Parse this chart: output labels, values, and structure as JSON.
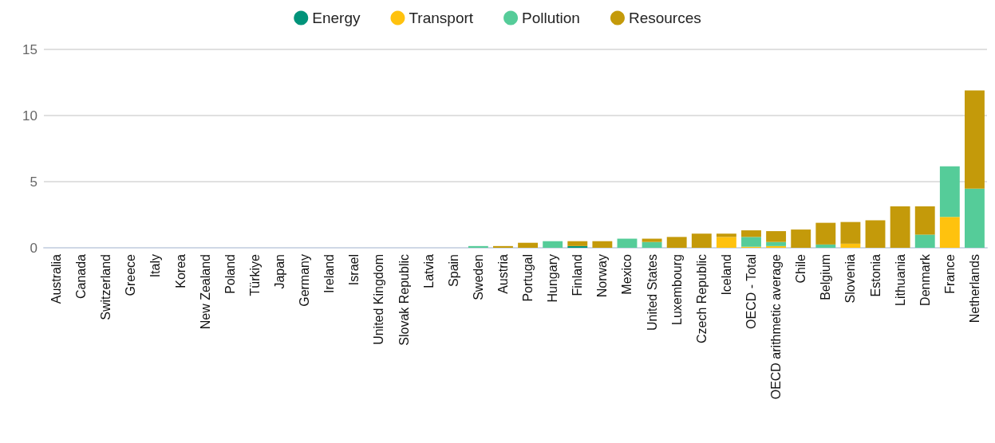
{
  "chart_data": {
    "type": "bar",
    "stacked": true,
    "legend": "top",
    "grid": "y",
    "ylim": [
      0,
      15
    ],
    "yticks": [
      0,
      5,
      10,
      15
    ],
    "categories": [
      "Australia",
      "Canada",
      "Switzerland",
      "Greece",
      "Italy",
      "Korea",
      "New Zealand",
      "Poland",
      "Türkiye",
      "Japan",
      "Germany",
      "Ireland",
      "Israel",
      "United Kingdom",
      "Slovak Republic",
      "Latvia",
      "Spain",
      "Sweden",
      "Austria",
      "Portugal",
      "Hungary",
      "Finland",
      "Norway",
      "Mexico",
      "United States",
      "Luxembourg",
      "Czech Republic",
      "Iceland",
      "OECD - Total",
      "OECD arithmetic average",
      "Chile",
      "Belgium",
      "Slovenia",
      "Estonia",
      "Lithuania",
      "Denmark",
      "France",
      "Netherlands"
    ],
    "series": [
      {
        "name": "Energy",
        "color": "#00937a",
        "values": [
          0,
          0,
          0,
          0,
          0,
          0,
          0,
          0,
          0,
          0,
          0,
          0,
          0,
          0,
          0,
          0,
          0,
          0,
          0,
          0,
          0,
          0.13,
          0,
          0,
          0,
          0,
          0,
          0,
          0,
          0,
          0,
          0,
          0,
          0,
          0,
          0,
          0,
          0
        ]
      },
      {
        "name": "Transport",
        "color": "#ffc20e",
        "values": [
          0,
          0,
          0,
          0,
          0,
          0,
          0,
          0,
          0,
          0,
          0,
          0,
          0,
          0,
          0,
          0,
          0,
          0,
          0,
          0,
          0,
          0,
          0,
          0,
          0,
          0,
          0,
          0.82,
          0.08,
          0.13,
          0,
          0,
          0.31,
          0,
          0,
          0,
          2.33,
          0
        ]
      },
      {
        "name": "Pollution",
        "color": "#55cc99",
        "values": [
          0,
          0,
          0,
          0,
          0,
          0,
          0,
          0,
          0,
          0,
          0,
          0,
          0,
          0,
          0,
          0,
          0,
          0.13,
          0,
          0,
          0.5,
          0,
          0,
          0.69,
          0.44,
          0,
          0,
          0,
          0.74,
          0.31,
          0,
          0.25,
          0,
          0,
          0,
          1.0,
          3.83,
          4.47
        ]
      },
      {
        "name": "Resources",
        "color": "#c49a0a",
        "values": [
          0,
          0,
          0,
          0,
          0,
          0,
          0,
          0,
          0,
          0,
          0,
          0,
          0,
          0,
          0,
          0,
          0,
          0,
          0.13,
          0.38,
          0,
          0.37,
          0.5,
          0,
          0.25,
          0.82,
          1.07,
          0.25,
          0.5,
          0.82,
          1.38,
          1.64,
          1.64,
          2.08,
          3.14,
          2.14,
          0,
          7.43
        ]
      }
    ]
  }
}
